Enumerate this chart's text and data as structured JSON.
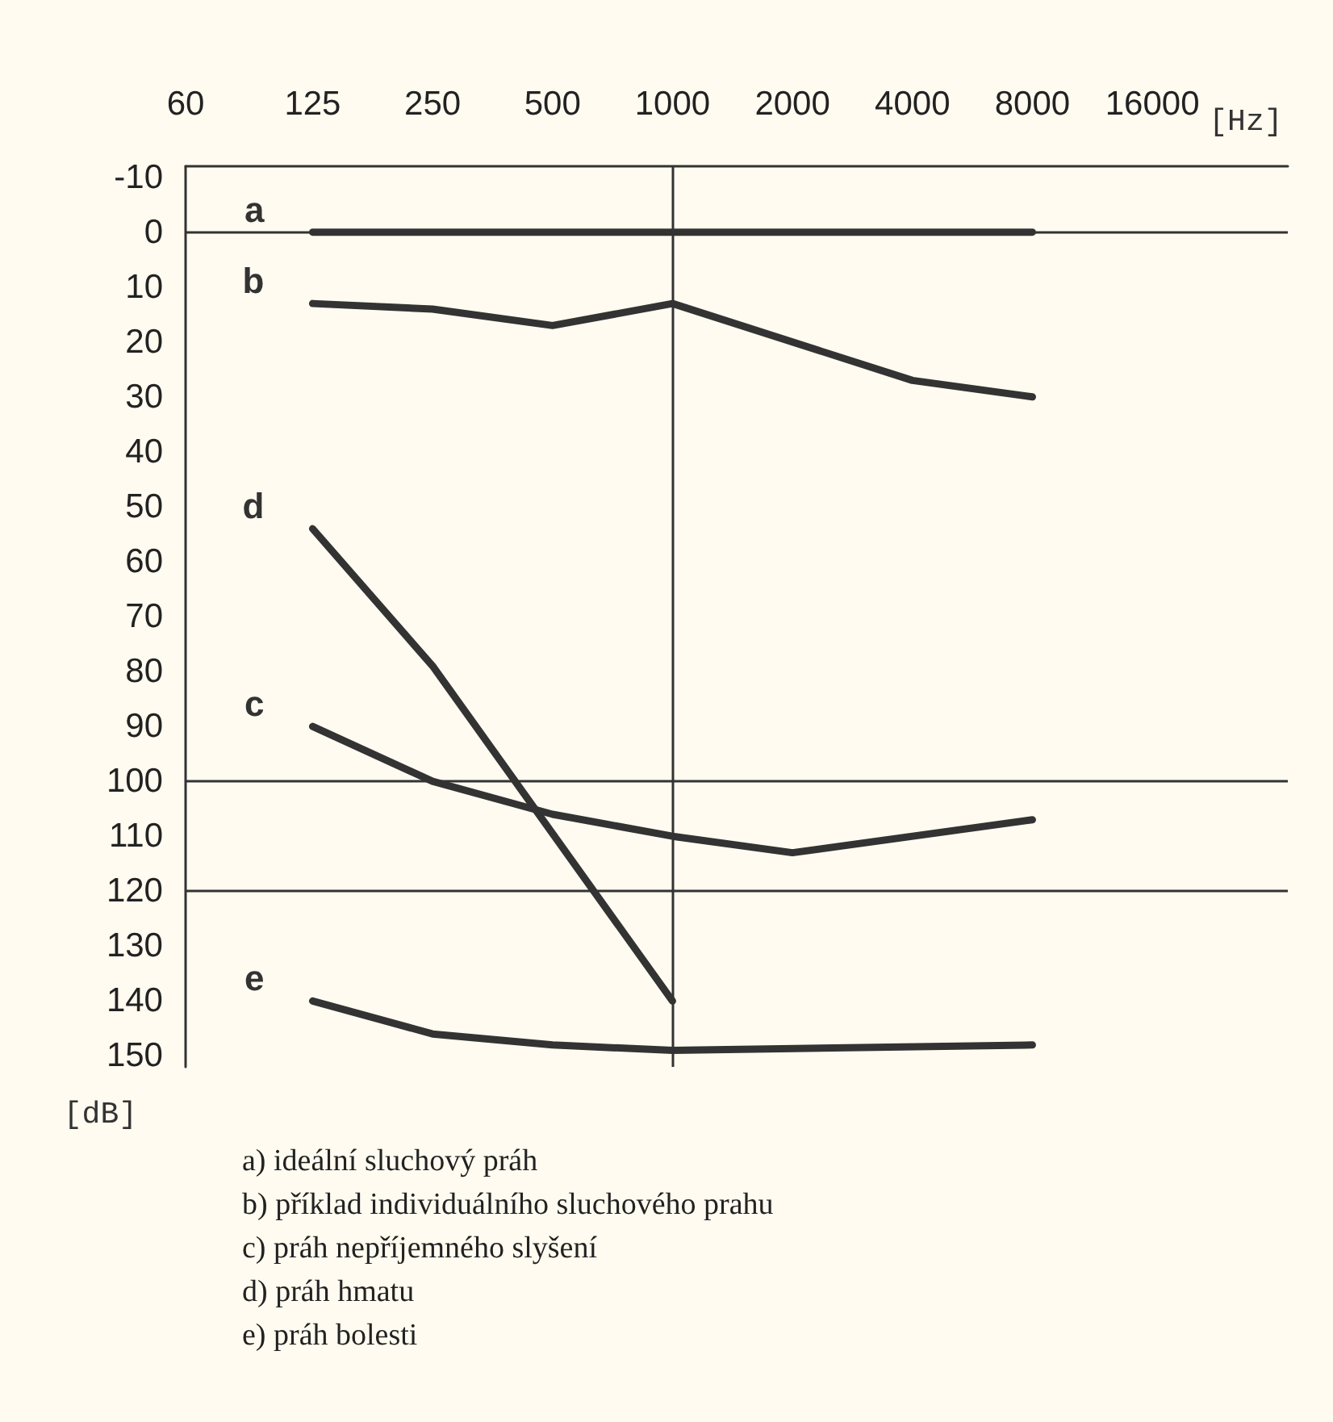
{
  "chart_data": {
    "type": "line",
    "xlabel": "[Hz]",
    "ylabel": "[dB]",
    "log": "x",
    "xlim": [
      60,
      35000
    ],
    "xticks": [
      60,
      125,
      250,
      500,
      1000,
      2000,
      4000,
      8000,
      16000
    ],
    "ylim": [
      152,
      -12
    ],
    "yticks": [
      -10,
      0,
      10,
      20,
      30,
      40,
      50,
      60,
      70,
      80,
      90,
      100,
      110,
      120,
      130,
      140,
      150
    ],
    "grid": false,
    "legend": false,
    "marker": "none",
    "line_style": "solid",
    "series": [
      {
        "name": "a",
        "color": "#333333",
        "x": [
          125,
          250,
          500,
          1000,
          2000,
          4000,
          8000
        ],
        "values": [
          0,
          0,
          0,
          0,
          0,
          0,
          0
        ]
      },
      {
        "name": "b",
        "color": "#333333",
        "x": [
          125,
          250,
          500,
          1000,
          4000,
          8000
        ],
        "values": [
          13,
          14,
          17,
          13,
          27,
          30
        ]
      },
      {
        "name": "d",
        "color": "#333333",
        "x": [
          125,
          250,
          1000
        ],
        "values": [
          54,
          79,
          140
        ]
      },
      {
        "name": "c",
        "color": "#333333",
        "x": [
          125,
          250,
          500,
          1000,
          2000,
          8000
        ],
        "values": [
          90,
          100,
          106,
          110,
          113,
          107
        ]
      },
      {
        "name": "e",
        "color": "#333333",
        "x": [
          125,
          250,
          500,
          1000,
          8000
        ],
        "values": [
          140,
          146,
          148,
          149,
          148
        ]
      }
    ],
    "ref_lines": [
      {
        "axis": "y",
        "value": 0,
        "color": "#333333"
      },
      {
        "axis": "y",
        "value": 100,
        "color": "#333333"
      },
      {
        "axis": "y",
        "value": 120,
        "color": "#333333"
      },
      {
        "axis": "x",
        "value": 1000,
        "color": "#333333"
      }
    ],
    "annotations": [
      "a) ideální sluchový práh",
      "b) příklad individuálního sluchového prahu",
      "c) práh nepříjemného slyšení",
      "d) práh hmatu",
      "e) práh bolesti"
    ]
  }
}
